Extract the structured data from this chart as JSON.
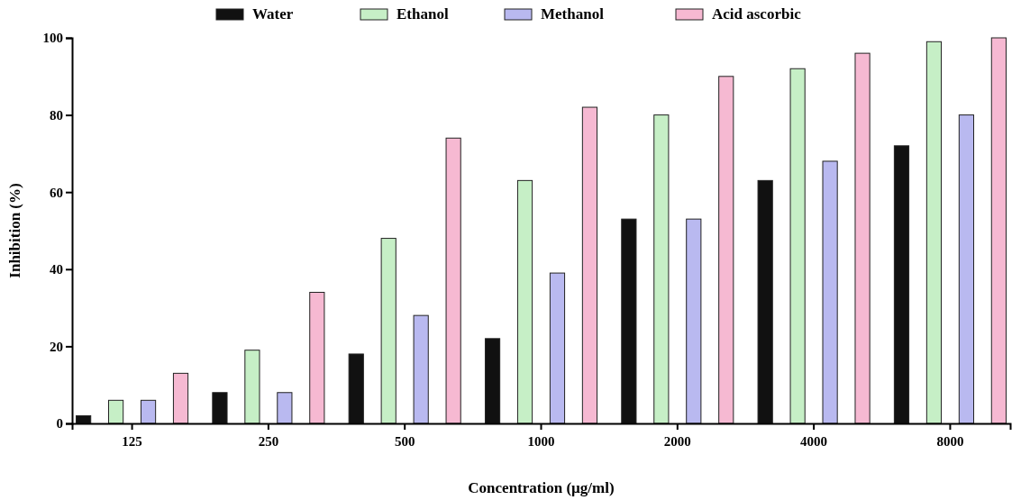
{
  "chart_data": {
    "type": "bar",
    "xlabel": "Concentration (µg/ml)",
    "ylabel": "Inhibition (%)",
    "categories": [
      "125",
      "250",
      "500",
      "1000",
      "2000",
      "4000",
      "8000"
    ],
    "series": [
      {
        "name": "Water",
        "color": "#111111",
        "values": [
          2,
          8,
          18,
          22,
          53,
          63,
          72
        ]
      },
      {
        "name": "Ethanol",
        "color": "#c6efc6",
        "values": [
          6,
          19,
          48,
          63,
          80,
          92,
          99
        ]
      },
      {
        "name": "Methanol",
        "color": "#b9b9f0",
        "values": [
          6,
          8,
          28,
          39,
          53,
          68,
          80
        ]
      },
      {
        "name": "Acid ascorbic",
        "color": "#f6b9d2",
        "values": [
          13,
          34,
          74,
          82,
          90,
          96,
          100
        ]
      }
    ],
    "ylim": [
      0,
      100
    ],
    "yticks": [
      0,
      20,
      40,
      60,
      80,
      100
    ],
    "grid": false,
    "legend": "top"
  }
}
